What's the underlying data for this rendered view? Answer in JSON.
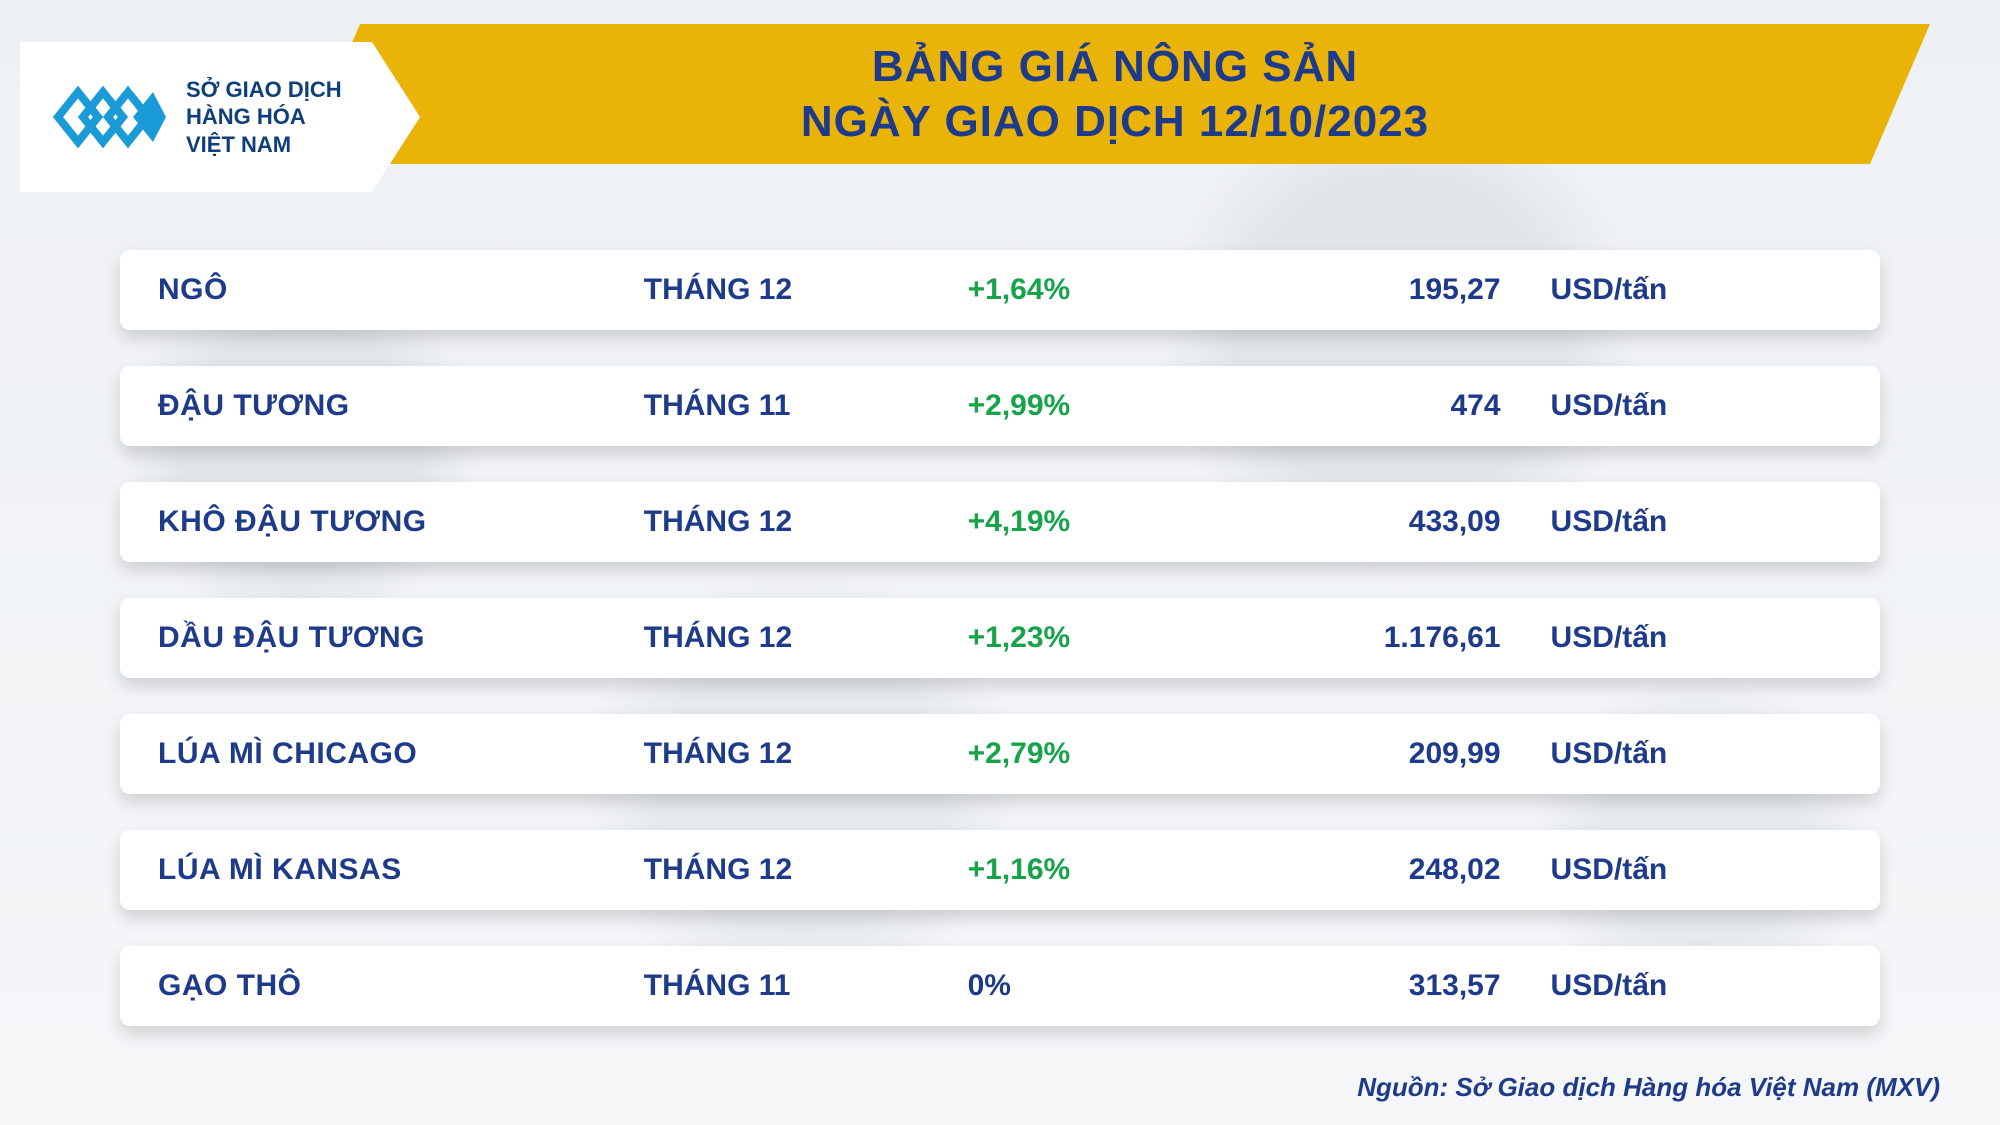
{
  "colors": {
    "navy": "#1e3a8a",
    "gold": "#eab308",
    "green": "#16a34a",
    "row_bg": "#ffffff",
    "page_bg": "#f0f2f5",
    "logo_blue": "#1a9bd7"
  },
  "typography": {
    "title_fontsize_pt": 33,
    "row_fontsize_pt": 22,
    "footer_fontsize_pt": 20,
    "weight": 800
  },
  "logo": {
    "line1": "SỞ GIAO DỊCH",
    "line2": "HÀNG HÓA",
    "line3": "VIỆT NAM"
  },
  "header": {
    "line1": "BẢNG GIÁ NÔNG SẢN",
    "line2": "NGÀY GIAO DỊCH 12/10/2023"
  },
  "table": {
    "type": "table",
    "columns": [
      "commodity",
      "contract_month",
      "pct_change",
      "price",
      "unit"
    ],
    "unit_default": "USD/tấn",
    "rows": [
      {
        "name": "NGÔ",
        "month": "THÁNG 12",
        "change": "+1,64%",
        "change_color": "#16a34a",
        "price": "195,27",
        "unit": "USD/tấn"
      },
      {
        "name": "ĐẬU TƯƠNG",
        "month": "THÁNG 11",
        "change": "+2,99%",
        "change_color": "#16a34a",
        "price": "474",
        "unit": "USD/tấn"
      },
      {
        "name": "KHÔ ĐẬU TƯƠNG",
        "month": "THÁNG 12",
        "change": "+4,19%",
        "change_color": "#16a34a",
        "price": "433,09",
        "unit": "USD/tấn"
      },
      {
        "name": "DẦU ĐẬU TƯƠNG",
        "month": "THÁNG 12",
        "change": "+1,23%",
        "change_color": "#16a34a",
        "price": "1.176,61",
        "unit": "USD/tấn"
      },
      {
        "name": "LÚA MÌ CHICAGO",
        "month": "THÁNG 12",
        "change": "+2,79%",
        "change_color": "#16a34a",
        "price": "209,99",
        "unit": "USD/tấn"
      },
      {
        "name": "LÚA MÌ KANSAS",
        "month": "THÁNG 12",
        "change": "+1,16%",
        "change_color": "#16a34a",
        "price": "248,02",
        "unit": "USD/tấn"
      },
      {
        "name": "GẠO THÔ",
        "month": "THÁNG 11",
        "change": "0%",
        "change_color": "#1e3a8a",
        "price": "313,57",
        "unit": "USD/tấn"
      }
    ]
  },
  "footer": "Nguồn: Sở Giao dịch Hàng hóa Việt Nam (MXV)"
}
